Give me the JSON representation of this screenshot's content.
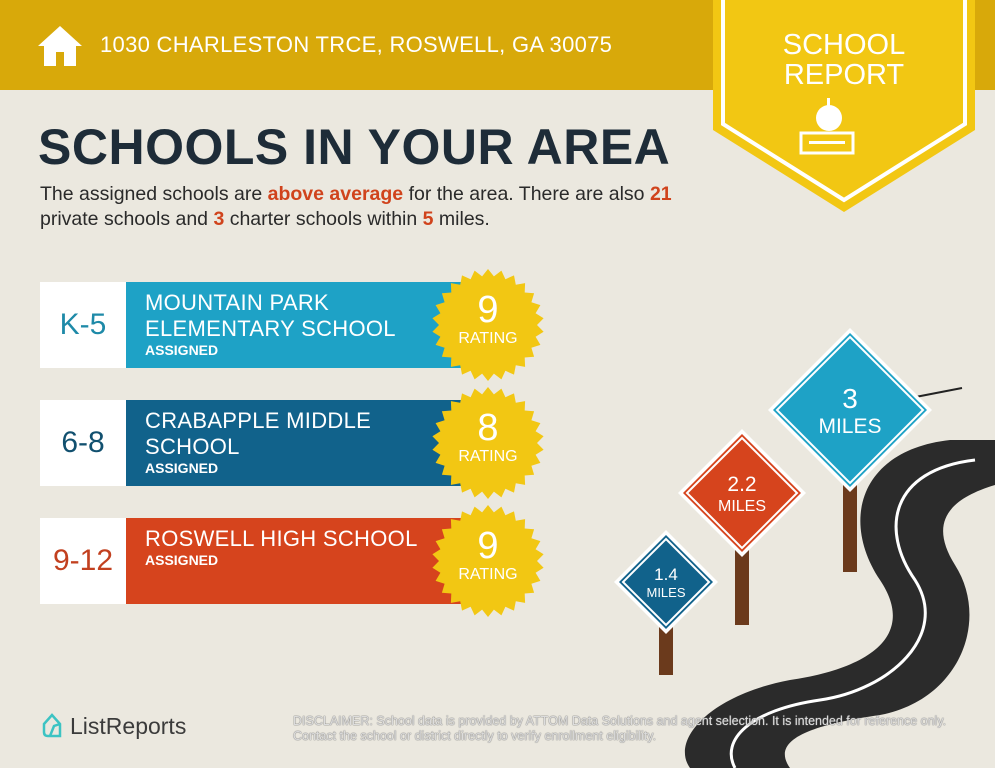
{
  "header": {
    "address": "1030 CHARLESTON TRCE, ROSWELL, GA 30075",
    "badge_line1": "SCHOOL",
    "badge_line2": "REPORT"
  },
  "title": "SCHOOLS IN YOUR AREA",
  "intro": {
    "p1": "The assigned schools are ",
    "highlight1": "above average",
    "p2": " for the area. There are also ",
    "private_count": "21",
    "p3": " private schools and ",
    "charter_count": "3",
    "p4": " charter schools within ",
    "miles": "5",
    "p5": " miles."
  },
  "schools": [
    {
      "grade": "K-5",
      "name_line1": "MOUNTAIN PARK",
      "name_line2": "ELEMENTARY SCHOOL",
      "status": "ASSIGNED",
      "rating": "9",
      "rating_label": "RATING",
      "color": "#1ea2c6",
      "grade_color": "#1e8aa8"
    },
    {
      "grade": "6-8",
      "name_line1": "CRABAPPLE MIDDLE",
      "name_line2": "SCHOOL",
      "status": "ASSIGNED",
      "rating": "8",
      "rating_label": "RATING",
      "color": "#11628b",
      "grade_color": "#11506f"
    },
    {
      "grade": "9-12",
      "name_line1": "ROSWELL HIGH SCHOOL",
      "name_line2": "",
      "status": "ASSIGNED",
      "rating": "9",
      "rating_label": "RATING",
      "color": "#d6441d",
      "grade_color": "#c2401f"
    }
  ],
  "signs": [
    {
      "value": "1.4",
      "unit": "MILES",
      "color": "#11628b"
    },
    {
      "value": "2.2",
      "unit": "MILES",
      "color": "#d6441d"
    },
    {
      "value": "3",
      "unit": "MILES",
      "color": "#1ea2c6"
    }
  ],
  "footer": {
    "logo": "ListReports",
    "disclaimer_label": "DISCLAIMER",
    "disclaimer": ": School data is provided by ATTOM Data Solutions and agent selection. It is intended for reference only. Contact the school or district directly to verify enrollment eligibility."
  },
  "colors": {
    "header": "#d8a90a",
    "badge": "#f2c713",
    "star": "#f2c713",
    "title": "#1e2c38",
    "accent": "#d0431c"
  }
}
